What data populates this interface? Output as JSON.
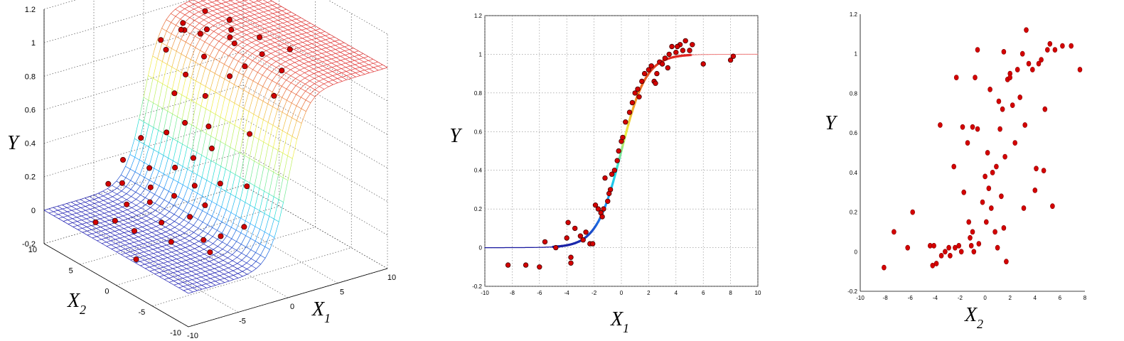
{
  "chart_data": [
    {
      "type": "surface3d",
      "zlabel": "Y",
      "xlabel": "X1",
      "ylabel": "X2",
      "xlim": [
        -10,
        10
      ],
      "ylim": [
        -10,
        10
      ],
      "zlim": [
        -0.2,
        1.2
      ],
      "x_ticks": [
        "-10",
        "-5",
        "0",
        "5",
        "10"
      ],
      "y_ticks": [
        "-10",
        "-5",
        "0",
        "5",
        "10"
      ],
      "z_ticks": [
        "-0.2",
        "0",
        "0.2",
        "0.4",
        "0.6",
        "0.8",
        "1",
        "1.2"
      ],
      "grid": true,
      "surface_function": "logistic in X1 (midpoint 0), constant in X2",
      "colormap": [
        "#1818b0",
        "#1aa0ff",
        "#20e0d0",
        "#a0f070",
        "#f0f040",
        "#f0a040",
        "#e03030"
      ],
      "points": [
        {
          "x1": 1.2,
          "x2": 6,
          "y": 0.98
        },
        {
          "x1": 2.0,
          "x2": 4,
          "y": 1.02
        },
        {
          "x1": 3.0,
          "x2": 2,
          "y": 1.05
        },
        {
          "x1": 1.6,
          "x2": 7,
          "y": 0.95
        },
        {
          "x1": 2.6,
          "x2": 1,
          "y": 1.0
        },
        {
          "x1": 3.6,
          "x2": 3,
          "y": 0.97
        },
        {
          "x1": 4.4,
          "x2": 0,
          "y": 1.03
        },
        {
          "x1": 1.0,
          "x2": 3,
          "y": 0.9
        },
        {
          "x1": 2.2,
          "x2": -1,
          "y": 0.92
        },
        {
          "x1": 5.0,
          "x2": 5,
          "y": 1.0
        },
        {
          "x1": 6.0,
          "x2": -2,
          "y": 0.98
        },
        {
          "x1": 0.8,
          "x2": 8,
          "y": 0.82
        },
        {
          "x1": 1.4,
          "x2": 0,
          "y": 0.85
        },
        {
          "x1": 2.8,
          "x2": 6,
          "y": 0.93
        },
        {
          "x1": 0.6,
          "x2": 5,
          "y": 0.75
        },
        {
          "x1": 0.4,
          "x2": 2,
          "y": 0.7
        },
        {
          "x1": 0.2,
          "x2": 6,
          "y": 0.62
        },
        {
          "x1": 0.0,
          "x2": 1,
          "y": 0.55
        },
        {
          "x1": -0.2,
          "x2": 4,
          "y": 0.5
        },
        {
          "x1": -0.4,
          "x2": 0,
          "y": 0.45
        },
        {
          "x1": -0.6,
          "x2": 6,
          "y": 0.4
        },
        {
          "x1": -0.8,
          "x2": 2,
          "y": 0.35
        },
        {
          "x1": -1.0,
          "x2": -2,
          "y": 0.3
        },
        {
          "x1": -1.2,
          "x2": 4,
          "y": 0.25
        },
        {
          "x1": -1.4,
          "x2": 1,
          "y": 0.22
        },
        {
          "x1": -1.6,
          "x2": 7,
          "y": 0.18
        },
        {
          "x1": -1.8,
          "x2": -1,
          "y": 0.16
        },
        {
          "x1": -2.0,
          "x2": 3,
          "y": 0.12
        },
        {
          "x1": -2.2,
          "x2": 6,
          "y": 0.1
        },
        {
          "x1": -2.6,
          "x2": 0,
          "y": 0.08
        },
        {
          "x1": -3.0,
          "x2": 5,
          "y": 0.05
        },
        {
          "x1": -3.4,
          "x2": -3,
          "y": 0.03
        },
        {
          "x1": -4.0,
          "x2": 2,
          "y": 0.02
        },
        {
          "x1": -4.6,
          "x2": 6,
          "y": 0.04
        },
        {
          "x1": -5.2,
          "x2": -1,
          "y": 0.0
        },
        {
          "x1": -6.0,
          "x2": 3,
          "y": -0.02
        },
        {
          "x1": -7.0,
          "x2": 7,
          "y": -0.05
        },
        {
          "x1": -8.0,
          "x2": 0,
          "y": -0.08
        },
        {
          "x1": -3.6,
          "x2": 8,
          "y": 0.1
        },
        {
          "x1": -2.4,
          "x2": -4,
          "y": 0.06
        },
        {
          "x1": -1.5,
          "x2": -6,
          "y": 0.15
        },
        {
          "x1": -0.5,
          "x2": -5,
          "y": 0.35
        },
        {
          "x1": 0.5,
          "x2": -4,
          "y": 0.62
        },
        {
          "x1": 1.5,
          "x2": -6,
          "y": 0.88
        },
        {
          "x1": 3.0,
          "x2": -5,
          "y": 0.98
        },
        {
          "x1": -2.8,
          "x2": 9,
          "y": 0.2
        },
        {
          "x1": -1.0,
          "x2": 9,
          "y": 0.3
        },
        {
          "x1": 1.0,
          "x2": 9,
          "y": 0.85
        },
        {
          "x1": 2.5,
          "x2": 8,
          "y": 0.95
        },
        {
          "x1": -5.0,
          "x2": 8,
          "y": 0.12
        },
        {
          "x1": -6.5,
          "x2": 5,
          "y": 0.0
        },
        {
          "x1": -4.2,
          "x2": -5,
          "y": 0.02
        },
        {
          "x1": 4.0,
          "x2": 7,
          "y": 1.02
        },
        {
          "x1": 3.2,
          "x2": -2,
          "y": 1.0
        }
      ]
    },
    {
      "type": "line",
      "xlabel": "X1",
      "ylabel": "Y",
      "xlim": [
        -10,
        10
      ],
      "ylim": [
        -0.2,
        1.2
      ],
      "x_ticks": [
        "-10",
        "-8",
        "-6",
        "-4",
        "-2",
        "0",
        "2",
        "4",
        "6",
        "8",
        "10"
      ],
      "y_ticks": [
        "-0.2",
        "0",
        "0.2",
        "0.4",
        "0.6",
        "0.8",
        "1",
        "1.2"
      ],
      "grid": true,
      "curve_colors": [
        "#1a1aa0",
        "#1e90ff",
        "#20e0e0",
        "#f0f040",
        "#f08020",
        "#e02020"
      ],
      "scatter_points": [
        {
          "x": -8.3,
          "y": -0.09
        },
        {
          "x": -7.0,
          "y": -0.09
        },
        {
          "x": -6.0,
          "y": -0.1
        },
        {
          "x": -5.6,
          "y": 0.03
        },
        {
          "x": -4.8,
          "y": 0.0
        },
        {
          "x": -4.0,
          "y": 0.05
        },
        {
          "x": -3.9,
          "y": 0.13
        },
        {
          "x": -3.7,
          "y": -0.05
        },
        {
          "x": -3.7,
          "y": -0.08
        },
        {
          "x": -3.4,
          "y": 0.1
        },
        {
          "x": -3.0,
          "y": 0.06
        },
        {
          "x": -2.6,
          "y": 0.08
        },
        {
          "x": -2.3,
          "y": 0.02
        },
        {
          "x": -2.1,
          "y": 0.02
        },
        {
          "x": -1.9,
          "y": 0.22
        },
        {
          "x": -1.7,
          "y": 0.2
        },
        {
          "x": -1.5,
          "y": 0.18
        },
        {
          "x": -1.3,
          "y": 0.2
        },
        {
          "x": -1.2,
          "y": 0.36
        },
        {
          "x": -1.0,
          "y": 0.24
        },
        {
          "x": -0.8,
          "y": 0.3
        },
        {
          "x": -0.7,
          "y": 0.38
        },
        {
          "x": -0.5,
          "y": 0.4
        },
        {
          "x": -0.3,
          "y": 0.45
        },
        {
          "x": -0.2,
          "y": 0.5
        },
        {
          "x": 0.0,
          "y": 0.55
        },
        {
          "x": 0.1,
          "y": 0.57
        },
        {
          "x": 0.3,
          "y": 0.65
        },
        {
          "x": 0.6,
          "y": 0.7
        },
        {
          "x": 0.8,
          "y": 0.75
        },
        {
          "x": 1.0,
          "y": 0.8
        },
        {
          "x": 1.2,
          "y": 0.82
        },
        {
          "x": 1.5,
          "y": 0.86
        },
        {
          "x": 1.7,
          "y": 0.9
        },
        {
          "x": 2.0,
          "y": 0.92
        },
        {
          "x": 2.2,
          "y": 0.94
        },
        {
          "x": 2.4,
          "y": 0.86
        },
        {
          "x": 2.6,
          "y": 0.9
        },
        {
          "x": 2.8,
          "y": 0.96
        },
        {
          "x": 3.0,
          "y": 0.95
        },
        {
          "x": 3.2,
          "y": 0.98
        },
        {
          "x": 3.5,
          "y": 1.0
        },
        {
          "x": 3.7,
          "y": 1.04
        },
        {
          "x": 4.0,
          "y": 1.01
        },
        {
          "x": 4.3,
          "y": 1.05
        },
        {
          "x": 4.5,
          "y": 1.02
        },
        {
          "x": 4.7,
          "y": 1.07
        },
        {
          "x": 5.0,
          "y": 1.02
        },
        {
          "x": 5.2,
          "y": 1.05
        },
        {
          "x": 6.0,
          "y": 0.95
        },
        {
          "x": 8.0,
          "y": 0.97
        },
        {
          "x": 8.2,
          "y": 0.99
        },
        {
          "x": 3.4,
          "y": 0.93
        },
        {
          "x": 2.5,
          "y": 0.85
        },
        {
          "x": 1.3,
          "y": 0.78
        },
        {
          "x": -0.9,
          "y": 0.28
        },
        {
          "x": -1.4,
          "y": 0.16
        },
        {
          "x": -2.8,
          "y": 0.04
        },
        {
          "x": 4.1,
          "y": 1.04
        }
      ]
    },
    {
      "type": "scatter",
      "xlabel": "X2",
      "ylabel": "Y",
      "xlim": [
        -10,
        8
      ],
      "ylim": [
        -0.2,
        1.2
      ],
      "x_ticks": [
        "-10",
        "-8",
        "-6",
        "-4",
        "-2",
        "0",
        "2",
        "4",
        "6",
        "8"
      ],
      "y_ticks": [
        "-0.2",
        "0",
        "0.2",
        "0.4",
        "0.6",
        "0.8",
        "1",
        "1.2"
      ],
      "grid": false,
      "points": [
        {
          "x": -8.1,
          "y": -0.08
        },
        {
          "x": -7.3,
          "y": 0.1
        },
        {
          "x": -6.2,
          "y": 0.02
        },
        {
          "x": -5.8,
          "y": 0.2
        },
        {
          "x": -4.4,
          "y": 0.03
        },
        {
          "x": -4.2,
          "y": -0.07
        },
        {
          "x": -4.1,
          "y": 0.03
        },
        {
          "x": -3.9,
          "y": -0.06
        },
        {
          "x": -3.6,
          "y": 0.64
        },
        {
          "x": -3.5,
          "y": -0.02
        },
        {
          "x": -3.2,
          "y": 0.0
        },
        {
          "x": -2.9,
          "y": 0.02
        },
        {
          "x": -2.8,
          "y": -0.02
        },
        {
          "x": -2.5,
          "y": 0.43
        },
        {
          "x": -2.4,
          "y": 0.02
        },
        {
          "x": -2.1,
          "y": 0.03
        },
        {
          "x": -1.9,
          "y": 0.0
        },
        {
          "x": -1.8,
          "y": 0.63
        },
        {
          "x": -1.7,
          "y": 0.3
        },
        {
          "x": -1.4,
          "y": 0.55
        },
        {
          "x": -1.3,
          "y": 0.15
        },
        {
          "x": -1.2,
          "y": 0.07
        },
        {
          "x": -1.1,
          "y": 0.03
        },
        {
          "x": -1.0,
          "y": 0.1
        },
        {
          "x": -0.9,
          "y": 0.0
        },
        {
          "x": -0.8,
          "y": 0.88
        },
        {
          "x": -0.6,
          "y": 0.62
        },
        {
          "x": -0.5,
          "y": 0.04
        },
        {
          "x": -0.2,
          "y": 0.25
        },
        {
          "x": 0.0,
          "y": 0.38
        },
        {
          "x": 0.1,
          "y": 0.15
        },
        {
          "x": 0.2,
          "y": 0.5
        },
        {
          "x": 0.3,
          "y": 0.32
        },
        {
          "x": 0.4,
          "y": 0.82
        },
        {
          "x": 0.5,
          "y": 0.22
        },
        {
          "x": 0.6,
          "y": 0.4
        },
        {
          "x": 0.8,
          "y": 0.1
        },
        {
          "x": 0.9,
          "y": 0.43
        },
        {
          "x": 1.0,
          "y": 0.02
        },
        {
          "x": 1.1,
          "y": 0.76
        },
        {
          "x": 1.2,
          "y": 0.62
        },
        {
          "x": 1.3,
          "y": 0.28
        },
        {
          "x": 1.4,
          "y": 0.72
        },
        {
          "x": 1.5,
          "y": 0.12
        },
        {
          "x": 1.6,
          "y": 0.48
        },
        {
          "x": 1.7,
          "y": -0.05
        },
        {
          "x": 1.8,
          "y": 0.87
        },
        {
          "x": 2.0,
          "y": 0.9
        },
        {
          "x": 2.2,
          "y": 0.74
        },
        {
          "x": 2.4,
          "y": 0.55
        },
        {
          "x": 2.6,
          "y": 0.92
        },
        {
          "x": 2.8,
          "y": 0.78
        },
        {
          "x": 3.0,
          "y": 1.0
        },
        {
          "x": 3.1,
          "y": 0.22
        },
        {
          "x": 3.2,
          "y": 0.64
        },
        {
          "x": 3.3,
          "y": 1.12
        },
        {
          "x": 3.5,
          "y": 0.95
        },
        {
          "x": 3.8,
          "y": 0.92
        },
        {
          "x": 4.0,
          "y": 0.31
        },
        {
          "x": 4.1,
          "y": 0.42
        },
        {
          "x": 4.3,
          "y": 0.95
        },
        {
          "x": 4.5,
          "y": 0.97
        },
        {
          "x": 4.7,
          "y": 0.41
        },
        {
          "x": 4.8,
          "y": 0.72
        },
        {
          "x": 5.0,
          "y": 1.02
        },
        {
          "x": 5.2,
          "y": 1.05
        },
        {
          "x": 5.4,
          "y": 0.23
        },
        {
          "x": 5.6,
          "y": 1.02
        },
        {
          "x": 6.2,
          "y": 1.04
        },
        {
          "x": 6.9,
          "y": 1.04
        },
        {
          "x": 7.6,
          "y": 0.92
        },
        {
          "x": -0.6,
          "y": 1.02
        },
        {
          "x": 1.5,
          "y": 1.01
        },
        {
          "x": 2.0,
          "y": 0.88
        },
        {
          "x": -2.3,
          "y": 0.88
        },
        {
          "x": -1.0,
          "y": 0.63
        }
      ]
    }
  ]
}
